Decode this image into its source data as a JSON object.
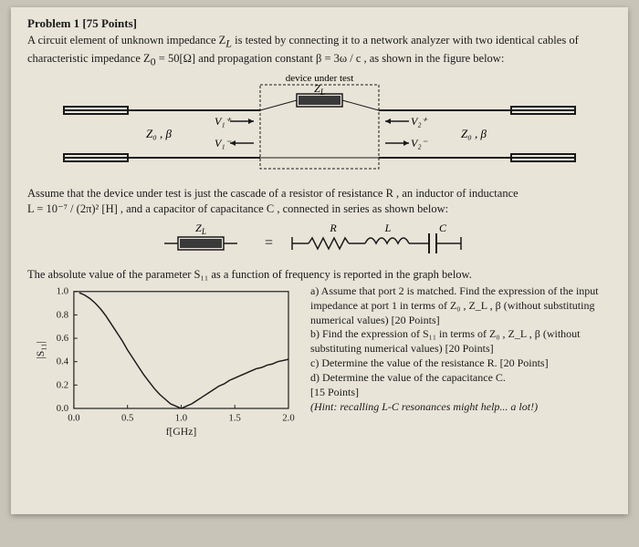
{
  "problem": {
    "heading": "Problem 1 [75 Points]",
    "intro_a": "A circuit element of unknown impedance Z",
    "intro_b": " is tested by connecting it to a network analyzer with two identical cables of characteristic impedance Z",
    "intro_c": " = 50[Ω] and propagation constant β = 3ω / c , as shown in the figure below:",
    "sub_L": "L",
    "sub_0": "0",
    "dut_label": "device under test",
    "ZL_label": "Z",
    "Z0b_label": "Z₀ , β",
    "V1p": "V₁⁺",
    "V1m": "V₁⁻",
    "V2p": "V₂⁺",
    "V2m": "V₂⁻"
  },
  "mid": {
    "text_a": "Assume that the device under test is just the cascade of a resistor of resistance R , an inductor of inductance",
    "text_b": "L = 10⁻⁷ / (2π)² [H] , and a capacitor of capacitance C , connected in series as shown below:",
    "R": "R",
    "L": "L",
    "C": "C",
    "ZL": "Z",
    "eq": "="
  },
  "graph_text": "The absolute value of the parameter S₁₁ as a function of frequency is reported in the graph below.",
  "chart": {
    "type": "line",
    "xlabel": "f[GHz]",
    "ylabel": "|S₁₁|",
    "xlim": [
      0,
      2.0
    ],
    "ylim": [
      0,
      1.0
    ],
    "xticks": [
      0.0,
      0.5,
      1.0,
      1.5,
      2.0
    ],
    "yticks": [
      0.0,
      0.2,
      0.4,
      0.6,
      0.8,
      1.0
    ],
    "line_color": "#1a1a1a",
    "line_width": 1.5,
    "background_color": "#e8e4d8",
    "box_color": "#1a1a1a",
    "points": [
      [
        0.05,
        0.99
      ],
      [
        0.1,
        0.97
      ],
      [
        0.15,
        0.94
      ],
      [
        0.2,
        0.9
      ],
      [
        0.25,
        0.85
      ],
      [
        0.3,
        0.79
      ],
      [
        0.35,
        0.72
      ],
      [
        0.4,
        0.65
      ],
      [
        0.45,
        0.58
      ],
      [
        0.5,
        0.5
      ],
      [
        0.55,
        0.43
      ],
      [
        0.6,
        0.36
      ],
      [
        0.65,
        0.29
      ],
      [
        0.7,
        0.23
      ],
      [
        0.75,
        0.17
      ],
      [
        0.8,
        0.12
      ],
      [
        0.85,
        0.08
      ],
      [
        0.9,
        0.04
      ],
      [
        0.95,
        0.02
      ],
      [
        1.0,
        0.0
      ],
      [
        1.05,
        0.02
      ],
      [
        1.1,
        0.04
      ],
      [
        1.15,
        0.07
      ],
      [
        1.2,
        0.1
      ],
      [
        1.25,
        0.13
      ],
      [
        1.3,
        0.16
      ],
      [
        1.35,
        0.19
      ],
      [
        1.4,
        0.21
      ],
      [
        1.45,
        0.24
      ],
      [
        1.5,
        0.26
      ],
      [
        1.55,
        0.28
      ],
      [
        1.6,
        0.3
      ],
      [
        1.65,
        0.32
      ],
      [
        1.7,
        0.34
      ],
      [
        1.75,
        0.35
      ],
      [
        1.8,
        0.37
      ],
      [
        1.85,
        0.38
      ],
      [
        1.9,
        0.4
      ],
      [
        1.95,
        0.41
      ],
      [
        2.0,
        0.42
      ]
    ]
  },
  "questions": {
    "a": "a) Assume that port 2 is matched. Find the expression of the input impedance at port 1 in terms of Z₀ , Z_L , β (without substituting numerical values) [20 Points]",
    "b": "b) Find the expression of S₁₁ in terms of Z₀ , Z_L , β (without substituting numerical values) [20 Points]",
    "c": "c) Determine the value of the resistance R. [20 Points]",
    "d": "d) Determine the value of the capacitance C.",
    "d_pts": "[15 Points]",
    "hint": "(Hint: recalling L-C resonances might help... a lot!)"
  }
}
